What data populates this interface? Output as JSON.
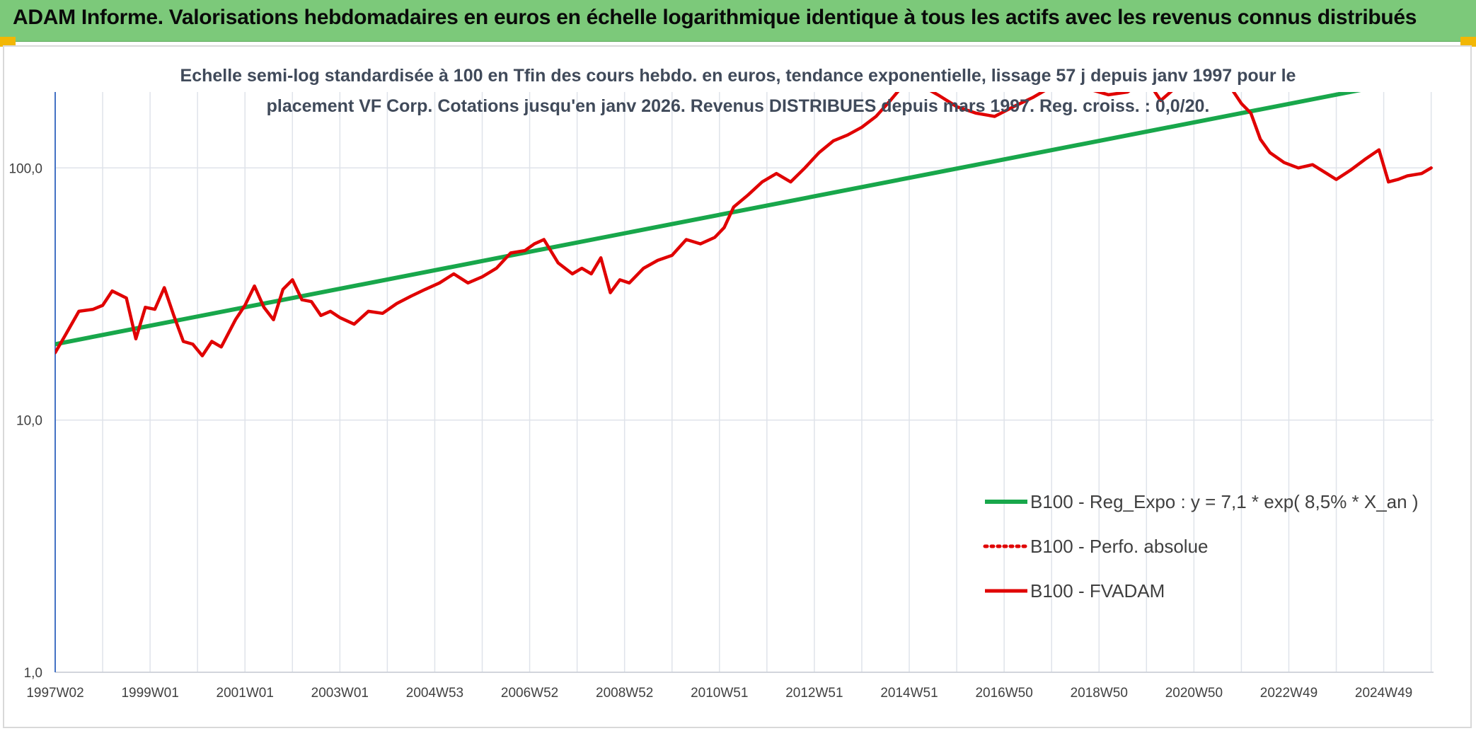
{
  "header": {
    "title": "ADAM Informe. Valorisations hebdomadaires en euros en échelle logarithmique identique à tous les actifs avec les revenus connus distribués"
  },
  "colors": {
    "banner": "#7cc97a",
    "accent_corner": "#f2b705",
    "trend_line": "#18a74b",
    "price_line": "#e00000",
    "grid": "#dfe3ea",
    "axis": "#4472c4"
  },
  "chart_data": {
    "type": "line",
    "subtitle_lines": [
      "Echelle semi-log standardisée à 100 en Tfin des cours hebdo. en euros, tendance exponentielle, lissage 57 j depuis janv 1997 pour le",
      "placement VF Corp. Cotations jusqu'en janv 2026. Revenus DISTRIBUES depuis mars 1997. Reg. croiss. : 0,0/20."
    ],
    "y_scale": "log",
    "ylim": [
      1,
      200
    ],
    "yticks": [
      1,
      10,
      100
    ],
    "ytick_labels": [
      "1,0",
      "10,0",
      "100,0"
    ],
    "xlim": [
      1997.0,
      2026.05
    ],
    "xtick_labels": [
      "1997W02",
      "1999W01",
      "2001W01",
      "2003W01",
      "2004W53",
      "2006W52",
      "2008W52",
      "2010W51",
      "2012W51",
      "2014W51",
      "2016W50",
      "2018W50",
      "2020W50",
      "2022W49",
      "2024W49"
    ],
    "xtick_years": [
      1997.0,
      1999.0,
      2001.0,
      2003.0,
      2005.0,
      2007.0,
      2009.0,
      2011.0,
      2013.0,
      2015.0,
      2017.0,
      2019.0,
      2021.0,
      2023.0,
      2025.0
    ],
    "grid": true,
    "legend_position": "bottom-right",
    "series": [
      {
        "name": "B100 - Reg_Expo : y = 7,1 * exp( 8,5% *  X_an )",
        "style": "solid-green",
        "x": [
          1997.0,
          2026.05
        ],
        "y": [
          20.0,
          232.0
        ]
      },
      {
        "name": "B100 - Perfo. absolue",
        "style": "dotted-red",
        "x": [],
        "y": []
      },
      {
        "name": "B100 - FVADAM",
        "style": "solid-red",
        "x": [
          1997.0,
          1997.2,
          1997.5,
          1997.8,
          1998.0,
          1998.2,
          1998.5,
          1998.7,
          1998.9,
          1999.1,
          1999.3,
          1999.5,
          1999.7,
          1999.9,
          2000.1,
          2000.3,
          2000.5,
          2000.8,
          2001.0,
          2001.2,
          2001.4,
          2001.6,
          2001.8,
          2002.0,
          2002.2,
          2002.4,
          2002.6,
          2002.8,
          2003.0,
          2003.3,
          2003.6,
          2003.9,
          2004.2,
          2004.5,
          2004.8,
          2005.1,
          2005.4,
          2005.7,
          2006.0,
          2006.3,
          2006.6,
          2006.9,
          2007.1,
          2007.3,
          2007.6,
          2007.9,
          2008.1,
          2008.3,
          2008.5,
          2008.7,
          2008.9,
          2009.1,
          2009.4,
          2009.7,
          2010.0,
          2010.3,
          2010.6,
          2010.9,
          2011.1,
          2011.3,
          2011.6,
          2011.9,
          2012.2,
          2012.5,
          2012.8,
          2013.1,
          2013.4,
          2013.7,
          2014.0,
          2014.3,
          2014.6,
          2014.8,
          2015.2,
          2015.6,
          2016.0,
          2016.4,
          2016.8,
          2017.2,
          2017.6,
          2018.0,
          2018.4,
          2018.8,
          2019.2,
          2019.6,
          2020.0,
          2020.3,
          2020.7,
          2021.1,
          2021.5,
          2021.8,
          2022.0,
          2022.2,
          2022.4,
          2022.6,
          2022.9,
          2023.2,
          2023.5,
          2023.8,
          2024.0,
          2024.3,
          2024.6,
          2024.9,
          2025.1,
          2025.3,
          2025.5,
          2025.8,
          2026.0
        ],
        "y": [
          18.5,
          21.5,
          27.0,
          27.5,
          28.5,
          32.5,
          30.5,
          21.0,
          28.0,
          27.5,
          33.5,
          26.0,
          20.5,
          20.0,
          18.0,
          20.5,
          19.5,
          25.0,
          28.5,
          34.0,
          28.0,
          25.0,
          33.0,
          36.0,
          30.0,
          29.5,
          26.0,
          27.0,
          25.5,
          24.0,
          27.0,
          26.5,
          29.0,
          31.0,
          33.0,
          35.0,
          38.0,
          35.0,
          37.0,
          40.0,
          46.0,
          47.0,
          50.0,
          52.0,
          42.0,
          38.0,
          40.0,
          38.0,
          44.0,
          32.0,
          36.0,
          35.0,
          40.0,
          43.0,
          45.0,
          52.0,
          50.0,
          53.0,
          58.0,
          70.0,
          78.0,
          88.0,
          95.0,
          88.0,
          100.0,
          115.0,
          128.0,
          135.0,
          145.0,
          160.0,
          185.0,
          205.0,
          215.0,
          195.0,
          175.0,
          165.0,
          160.0,
          175.0,
          190.0,
          210.0,
          215.0,
          205.0,
          195.0,
          200.0,
          225.0,
          185.0,
          215.0,
          225.0,
          235.0,
          205.0,
          180.0,
          165.0,
          130.0,
          115.0,
          105.0,
          100.0,
          103.0,
          95.0,
          90.0,
          98.0,
          108.0,
          118.0,
          88.0,
          90.0,
          93.0,
          95.0,
          100.0
        ]
      }
    ]
  }
}
